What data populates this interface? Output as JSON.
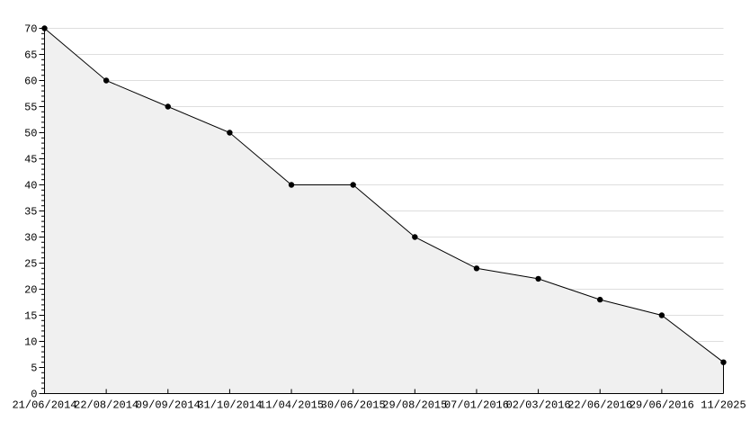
{
  "chart_data": {
    "type": "area",
    "title": "",
    "xlabel": "",
    "ylabel": "",
    "categories": [
      "21/06/2014",
      "22/08/2014",
      "09/09/2014",
      "31/10/2014",
      "11/04/2015",
      "30/06/2015",
      "29/08/2015",
      "07/01/2016",
      "02/03/2016",
      "22/06/2016",
      "29/06/2016",
      "11/2025"
    ],
    "values": [
      70,
      60,
      55,
      50,
      40,
      40,
      30,
      24,
      22,
      18,
      15,
      6
    ],
    "ylim": [
      0,
      70
    ],
    "ytick_step": 5,
    "yminor_step": 1,
    "grid": true,
    "legend": false,
    "marker_style": "filled-dot",
    "colors": {
      "background": "#ffffff",
      "fill": "#f0f0f0",
      "grid": "#dedede",
      "line": "#000000",
      "marker": "#000000",
      "axis": "#000000",
      "text": "#000000"
    }
  }
}
